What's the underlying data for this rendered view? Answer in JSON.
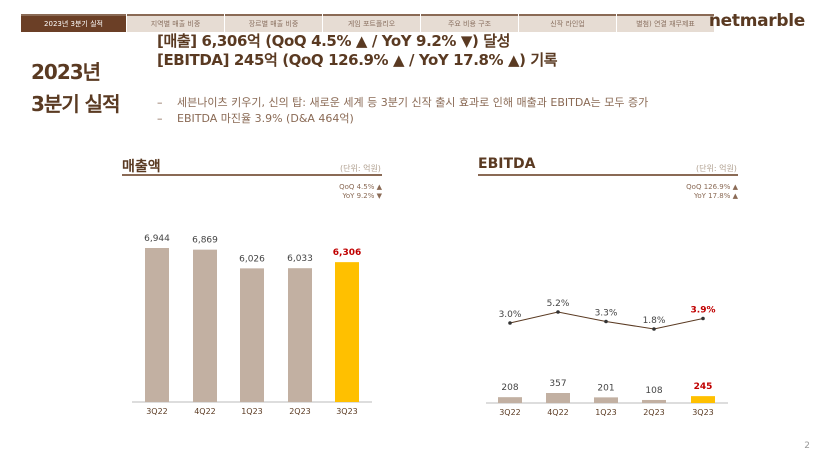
{
  "tabs": [
    "2023년 3분기 실적",
    "지역별 매출 비중",
    "장르별 매출 비중",
    "게임 포트폴리오",
    "주요 비용 구조",
    "신작 라인업",
    "별첨) 연결 재무제표"
  ],
  "logo": "netmarble",
  "page_title": [
    "2023년",
    "3분기 실적"
  ],
  "headlines": [
    "[매출] 6,306억 (QoQ 4.5% ▲ / YoY 9.2% ▼) 달성",
    "[EBITDA] 245억 (QoQ 126.9% ▲ / YoY 17.8% ▲) 기록"
  ],
  "bullets": [
    "세븐나이츠 키우기, 신의 탑: 새로운 세계 등 3분기 신작 출시 효과로 인해 매출과 EBITDA는 모두 증가",
    "EBITDA 마진율 3.9% (D&A 464억)"
  ],
  "page_number": "2",
  "colors": {
    "bar": "#c2b0a2",
    "highlight": "#ffc000",
    "accent": "#c00000",
    "brown": "#6b3f26"
  },
  "chart_data": [
    {
      "type": "bar",
      "title": "매출액",
      "unit": "(단위: 억원)",
      "delta": [
        "QoQ 4.5% ▲",
        "YoY 9.2% ▼"
      ],
      "categories": [
        "3Q22",
        "4Q22",
        "1Q23",
        "2Q23",
        "3Q23"
      ],
      "values": [
        6944,
        6869,
        6026,
        6033,
        6306
      ],
      "labels": [
        "6,944",
        "6,869",
        "6,026",
        "6,033",
        "6,306"
      ],
      "ylim": [
        0,
        9000
      ]
    },
    {
      "type": "bar+line",
      "title": "EBITDA",
      "unit": "(단위: 억원)",
      "delta": [
        "QoQ 126.9% ▲",
        "YoY 17.8% ▲"
      ],
      "categories": [
        "3Q22",
        "4Q22",
        "1Q23",
        "2Q23",
        "3Q23"
      ],
      "values": [
        208,
        357,
        201,
        108,
        245
      ],
      "labels": [
        "208",
        "357",
        "201",
        "108",
        "245"
      ],
      "margin": [
        3.0,
        5.2,
        3.3,
        1.8,
        3.9
      ],
      "margin_labels": [
        "3.0%",
        "5.2%",
        "3.3%",
        "1.8%",
        "3.9%"
      ]
    }
  ]
}
